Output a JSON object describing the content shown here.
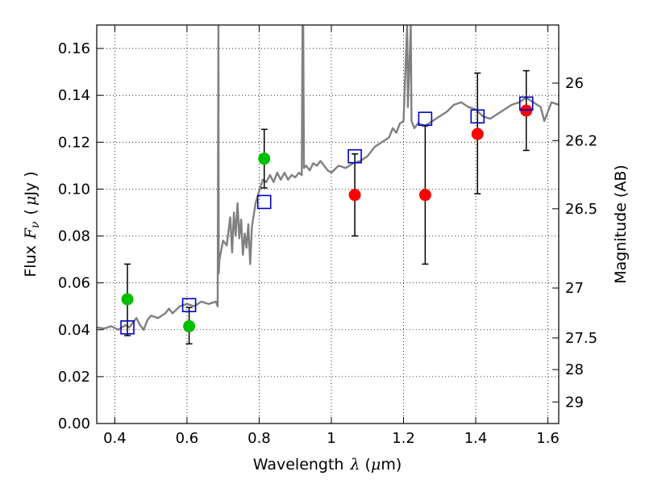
{
  "chart_data": {
    "type": "scatter",
    "xlabel_text": "Wavelength",
    "xlabel_symbol": "λ",
    "xlabel_unit_open": "(",
    "xlabel_unit_mu": "μ",
    "xlabel_unit_rest": "m)",
    "ylabel_text": "Flux",
    "ylabel_symbol": "F",
    "ylabel_sub": "ν",
    "ylabel_unit_open": "(",
    "ylabel_unit_mu": "μ",
    "ylabel_unit_rest": "Jy )",
    "y2label": "Magnitude (AB)",
    "xlim": [
      0.35,
      1.63
    ],
    "ylim": [
      0.0,
      0.17
    ],
    "grid": true,
    "x_ticks": [
      0.4,
      0.6,
      0.8,
      1.0,
      1.2,
      1.4,
      1.6
    ],
    "x_tick_labels": [
      "0.4",
      "0.6",
      "0.8",
      "1",
      "1.2",
      "1.4",
      "1.6"
    ],
    "y_ticks": [
      0.0,
      0.02,
      0.04,
      0.06,
      0.08,
      0.1,
      0.12,
      0.14,
      0.16
    ],
    "y_tick_labels": [
      "0.00",
      "0.02",
      "0.04",
      "0.06",
      "0.08",
      "0.10",
      "0.12",
      "0.14",
      "0.16"
    ],
    "y2_ticks": [
      {
        "label": "26",
        "flux": 0.1452
      },
      {
        "label": "26.2",
        "flux": 0.1207
      },
      {
        "label": "26.5",
        "flux": 0.0916
      },
      {
        "label": "27",
        "flux": 0.0578
      },
      {
        "label": "27.5",
        "flux": 0.0365
      },
      {
        "label": "28",
        "flux": 0.023
      },
      {
        "label": "29",
        "flux": 0.0092
      }
    ],
    "model_spectrum": {
      "color": "#808080",
      "points": [
        [
          0.35,
          0.041
        ],
        [
          0.37,
          0.0405
        ],
        [
          0.39,
          0.0415
        ],
        [
          0.41,
          0.04
        ],
        [
          0.43,
          0.042
        ],
        [
          0.44,
          0.041
        ],
        [
          0.45,
          0.043
        ],
        [
          0.46,
          0.045
        ],
        [
          0.47,
          0.042
        ],
        [
          0.48,
          0.04
        ],
        [
          0.49,
          0.044
        ],
        [
          0.5,
          0.046
        ],
        [
          0.52,
          0.045
        ],
        [
          0.54,
          0.047
        ],
        [
          0.55,
          0.049
        ],
        [
          0.56,
          0.047
        ],
        [
          0.58,
          0.05
        ],
        [
          0.6,
          0.051
        ],
        [
          0.62,
          0.05
        ],
        [
          0.64,
          0.052
        ],
        [
          0.66,
          0.051
        ],
        [
          0.68,
          0.052
        ],
        [
          0.685,
          0.05
        ],
        [
          0.687,
          0.17
        ],
        [
          0.688,
          0.064
        ],
        [
          0.69,
          0.07
        ],
        [
          0.7,
          0.078
        ],
        [
          0.71,
          0.076
        ],
        [
          0.72,
          0.088
        ],
        [
          0.725,
          0.073
        ],
        [
          0.73,
          0.09
        ],
        [
          0.735,
          0.08
        ],
        [
          0.74,
          0.094
        ],
        [
          0.745,
          0.079
        ],
        [
          0.75,
          0.087
        ],
        [
          0.755,
          0.072
        ],
        [
          0.76,
          0.081
        ],
        [
          0.765,
          0.075
        ],
        [
          0.77,
          0.085
        ],
        [
          0.775,
          0.068
        ],
        [
          0.78,
          0.084
        ],
        [
          0.79,
          0.094
        ],
        [
          0.8,
          0.099
        ],
        [
          0.81,
          0.104
        ],
        [
          0.82,
          0.103
        ],
        [
          0.83,
          0.106
        ],
        [
          0.84,
          0.103
        ],
        [
          0.85,
          0.107
        ],
        [
          0.86,
          0.104
        ],
        [
          0.87,
          0.107
        ],
        [
          0.88,
          0.104
        ],
        [
          0.89,
          0.106
        ],
        [
          0.9,
          0.105
        ],
        [
          0.91,
          0.107
        ],
        [
          0.918,
          0.106
        ],
        [
          0.92,
          0.17
        ],
        [
          0.922,
          0.17
        ],
        [
          0.924,
          0.109
        ],
        [
          0.93,
          0.11
        ],
        [
          0.94,
          0.108
        ],
        [
          0.95,
          0.111
        ],
        [
          0.96,
          0.11
        ],
        [
          0.97,
          0.112
        ],
        [
          0.98,
          0.11
        ],
        [
          0.99,
          0.108
        ],
        [
          1.0,
          0.107
        ],
        [
          1.02,
          0.11
        ],
        [
          1.04,
          0.109
        ],
        [
          1.06,
          0.111
        ],
        [
          1.08,
          0.112
        ],
        [
          1.1,
          0.114
        ],
        [
          1.12,
          0.118
        ],
        [
          1.14,
          0.12
        ],
        [
          1.16,
          0.122
        ],
        [
          1.17,
          0.126
        ],
        [
          1.18,
          0.124
        ],
        [
          1.19,
          0.128
        ],
        [
          1.2,
          0.129
        ],
        [
          1.21,
          0.17
        ],
        [
          1.212,
          0.135
        ],
        [
          1.22,
          0.17
        ],
        [
          1.222,
          0.129
        ],
        [
          1.23,
          0.126
        ],
        [
          1.24,
          0.128
        ],
        [
          1.26,
          0.127
        ],
        [
          1.28,
          0.129
        ],
        [
          1.3,
          0.131
        ],
        [
          1.32,
          0.133
        ],
        [
          1.34,
          0.136
        ],
        [
          1.36,
          0.137
        ],
        [
          1.38,
          0.135
        ],
        [
          1.4,
          0.134
        ],
        [
          1.42,
          0.131
        ],
        [
          1.44,
          0.13
        ],
        [
          1.46,
          0.132
        ],
        [
          1.48,
          0.134
        ],
        [
          1.5,
          0.136
        ],
        [
          1.52,
          0.137
        ],
        [
          1.54,
          0.139
        ],
        [
          1.56,
          0.137
        ],
        [
          1.58,
          0.135
        ],
        [
          1.59,
          0.129
        ],
        [
          1.6,
          0.133
        ],
        [
          1.61,
          0.137
        ],
        [
          1.63,
          0.136
        ]
      ]
    },
    "series": [
      {
        "marker": "circle",
        "color": "#00bf00",
        "points": [
          {
            "x": 0.435,
            "y": 0.053,
            "yerr_low": 0.0375,
            "yerr_high": 0.068
          },
          {
            "x": 0.606,
            "y": 0.0415,
            "yerr_low": 0.034,
            "yerr_high": 0.0495
          },
          {
            "x": 0.814,
            "y": 0.113,
            "yerr_low": 0.1005,
            "yerr_high": 0.1255
          }
        ]
      },
      {
        "marker": "circle",
        "color": "#ff0000",
        "points": [
          {
            "x": 1.065,
            "y": 0.0975,
            "yerr_low": 0.08,
            "yerr_high": 0.115
          },
          {
            "x": 1.26,
            "y": 0.0975,
            "yerr_low": 0.068,
            "yerr_high": 0.127
          },
          {
            "x": 1.405,
            "y": 0.1235,
            "yerr_low": 0.098,
            "yerr_high": 0.1495
          },
          {
            "x": 1.54,
            "y": 0.1335,
            "yerr_low": 0.1165,
            "yerr_high": 0.1505
          }
        ]
      },
      {
        "marker": "open-square",
        "color": "#0000cc",
        "points": [
          {
            "x": 0.435,
            "y": 0.041
          },
          {
            "x": 0.606,
            "y": 0.0505
          },
          {
            "x": 0.814,
            "y": 0.0945
          },
          {
            "x": 1.065,
            "y": 0.114
          },
          {
            "x": 1.26,
            "y": 0.13
          },
          {
            "x": 1.405,
            "y": 0.131
          },
          {
            "x": 1.54,
            "y": 0.1365
          }
        ]
      }
    ]
  }
}
